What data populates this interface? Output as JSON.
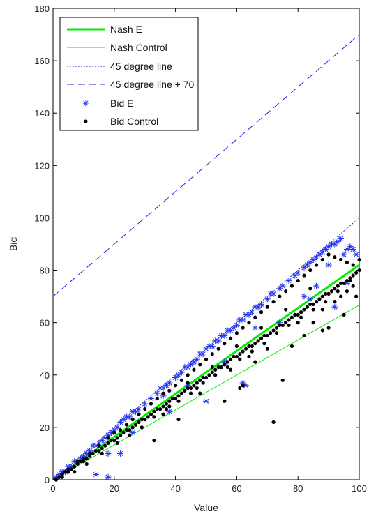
{
  "chart_data": {
    "type": "scatter",
    "title": "",
    "xlabel": "Value",
    "ylabel": "Bid",
    "xlim": [
      0,
      100
    ],
    "ylim": [
      0,
      180
    ],
    "xticks": [
      0,
      20,
      40,
      60,
      80,
      100
    ],
    "yticks": [
      0,
      20,
      40,
      60,
      80,
      100,
      120,
      140,
      160,
      180
    ],
    "grid": false,
    "legend_position": "top-left",
    "lines": [
      {
        "name": "Nash E",
        "style": "solid-thick",
        "color": "#00ee00",
        "points": [
          [
            0,
            0
          ],
          [
            100,
            82
          ]
        ]
      },
      {
        "name": "Nash Control",
        "style": "solid-thin",
        "color": "#00ee00",
        "points": [
          [
            0,
            0
          ],
          [
            100,
            66.7
          ]
        ]
      },
      {
        "name": "45 degree line",
        "style": "dotted",
        "color": "#2222dd",
        "points": [
          [
            0,
            0
          ],
          [
            100,
            100
          ]
        ]
      },
      {
        "name": "45 degree line + 70",
        "style": "dashed",
        "color": "#2222dd",
        "points": [
          [
            0,
            70
          ],
          [
            100,
            170
          ]
        ]
      }
    ],
    "series": [
      {
        "name": "Bid E",
        "marker": "star",
        "color": "#2233ee",
        "points": [
          [
            1,
            1
          ],
          [
            2,
            2
          ],
          [
            3,
            3
          ],
          [
            4,
            3
          ],
          [
            5,
            5
          ],
          [
            6,
            5
          ],
          [
            7,
            7
          ],
          [
            8,
            7
          ],
          [
            9,
            8
          ],
          [
            10,
            9
          ],
          [
            11,
            10
          ],
          [
            12,
            11
          ],
          [
            13,
            13
          ],
          [
            14,
            13
          ],
          [
            15,
            14
          ],
          [
            16,
            15
          ],
          [
            17,
            16
          ],
          [
            18,
            17
          ],
          [
            19,
            18
          ],
          [
            20,
            19
          ],
          [
            21,
            20
          ],
          [
            22,
            22
          ],
          [
            23,
            23
          ],
          [
            24,
            24
          ],
          [
            25,
            24
          ],
          [
            26,
            26
          ],
          [
            27,
            26
          ],
          [
            28,
            27
          ],
          [
            30,
            29
          ],
          [
            32,
            31
          ],
          [
            34,
            33
          ],
          [
            35,
            35
          ],
          [
            36,
            35
          ],
          [
            37,
            36
          ],
          [
            38,
            37
          ],
          [
            40,
            39
          ],
          [
            41,
            40
          ],
          [
            42,
            41
          ],
          [
            43,
            43
          ],
          [
            44,
            43
          ],
          [
            45,
            44
          ],
          [
            46,
            45
          ],
          [
            47,
            46
          ],
          [
            48,
            48
          ],
          [
            49,
            48
          ],
          [
            50,
            50
          ],
          [
            51,
            51
          ],
          [
            52,
            51
          ],
          [
            53,
            53
          ],
          [
            54,
            53
          ],
          [
            55,
            55
          ],
          [
            56,
            55
          ],
          [
            57,
            57
          ],
          [
            58,
            57
          ],
          [
            59,
            58
          ],
          [
            60,
            59
          ],
          [
            61,
            61
          ],
          [
            62,
            61
          ],
          [
            63,
            63
          ],
          [
            64,
            63
          ],
          [
            65,
            64
          ],
          [
            66,
            66
          ],
          [
            67,
            66
          ],
          [
            68,
            67
          ],
          [
            70,
            69
          ],
          [
            71,
            71
          ],
          [
            72,
            71
          ],
          [
            74,
            73
          ],
          [
            75,
            74
          ],
          [
            77,
            76
          ],
          [
            79,
            78
          ],
          [
            80,
            79
          ],
          [
            82,
            81
          ],
          [
            83,
            82
          ],
          [
            84,
            83
          ],
          [
            85,
            84
          ],
          [
            86,
            85
          ],
          [
            87,
            86
          ],
          [
            88,
            87
          ],
          [
            89,
            88
          ],
          [
            90,
            89
          ],
          [
            91,
            90
          ],
          [
            92,
            90
          ],
          [
            93,
            91
          ],
          [
            94,
            92
          ],
          [
            95,
            86
          ],
          [
            96,
            88
          ],
          [
            97,
            89
          ],
          [
            98,
            88
          ],
          [
            99,
            86
          ],
          [
            14,
            2
          ],
          [
            18,
            1
          ],
          [
            22,
            10
          ],
          [
            38,
            26
          ],
          [
            50,
            30
          ],
          [
            62,
            37
          ],
          [
            63,
            36
          ],
          [
            84,
            69
          ],
          [
            86,
            74
          ],
          [
            92,
            66
          ],
          [
            96,
            75
          ],
          [
            36,
            32
          ],
          [
            56,
            45
          ],
          [
            74,
            60
          ],
          [
            82,
            70
          ],
          [
            18,
            10
          ],
          [
            26,
            18
          ],
          [
            44,
            36
          ],
          [
            66,
            58
          ],
          [
            90,
            82
          ]
        ]
      },
      {
        "name": "Bid Control",
        "marker": "dot",
        "color": "#000000",
        "points": [
          [
            1,
            0
          ],
          [
            2,
            1
          ],
          [
            3,
            2
          ],
          [
            4,
            3
          ],
          [
            5,
            3
          ],
          [
            6,
            4
          ],
          [
            7,
            5
          ],
          [
            8,
            6
          ],
          [
            9,
            7
          ],
          [
            10,
            7
          ],
          [
            11,
            8
          ],
          [
            12,
            9
          ],
          [
            13,
            10
          ],
          [
            14,
            11
          ],
          [
            15,
            11
          ],
          [
            16,
            12
          ],
          [
            17,
            13
          ],
          [
            18,
            14
          ],
          [
            19,
            15
          ],
          [
            20,
            15
          ],
          [
            21,
            16
          ],
          [
            22,
            17
          ],
          [
            23,
            18
          ],
          [
            24,
            19
          ],
          [
            25,
            19
          ],
          [
            26,
            20
          ],
          [
            27,
            21
          ],
          [
            28,
            22
          ],
          [
            29,
            23
          ],
          [
            30,
            23
          ],
          [
            31,
            24
          ],
          [
            32,
            25
          ],
          [
            33,
            26
          ],
          [
            34,
            27
          ],
          [
            35,
            27
          ],
          [
            36,
            28
          ],
          [
            37,
            29
          ],
          [
            38,
            30
          ],
          [
            39,
            31
          ],
          [
            40,
            31
          ],
          [
            41,
            32
          ],
          [
            42,
            33
          ],
          [
            43,
            34
          ],
          [
            44,
            35
          ],
          [
            45,
            35
          ],
          [
            46,
            36
          ],
          [
            47,
            37
          ],
          [
            48,
            38
          ],
          [
            49,
            39
          ],
          [
            50,
            39
          ],
          [
            51,
            40
          ],
          [
            52,
            41
          ],
          [
            53,
            42
          ],
          [
            54,
            43
          ],
          [
            55,
            43
          ],
          [
            56,
            44
          ],
          [
            57,
            45
          ],
          [
            58,
            46
          ],
          [
            59,
            47
          ],
          [
            60,
            47
          ],
          [
            61,
            48
          ],
          [
            62,
            49
          ],
          [
            63,
            50
          ],
          [
            64,
            51
          ],
          [
            65,
            51
          ],
          [
            66,
            52
          ],
          [
            67,
            53
          ],
          [
            68,
            54
          ],
          [
            69,
            55
          ],
          [
            70,
            55
          ],
          [
            71,
            56
          ],
          [
            72,
            57
          ],
          [
            73,
            58
          ],
          [
            74,
            59
          ],
          [
            75,
            59
          ],
          [
            76,
            60
          ],
          [
            77,
            61
          ],
          [
            78,
            62
          ],
          [
            79,
            63
          ],
          [
            80,
            63
          ],
          [
            81,
            64
          ],
          [
            82,
            65
          ],
          [
            83,
            66
          ],
          [
            84,
            67
          ],
          [
            85,
            67
          ],
          [
            86,
            68
          ],
          [
            87,
            69
          ],
          [
            88,
            70
          ],
          [
            89,
            71
          ],
          [
            90,
            71
          ],
          [
            91,
            72
          ],
          [
            92,
            73
          ],
          [
            93,
            74
          ],
          [
            94,
            75
          ],
          [
            95,
            75
          ],
          [
            96,
            76
          ],
          [
            97,
            77
          ],
          [
            98,
            78
          ],
          [
            99,
            79
          ],
          [
            100,
            80
          ],
          [
            3,
            1
          ],
          [
            5,
            4
          ],
          [
            8,
            7
          ],
          [
            10,
            8
          ],
          [
            12,
            10
          ],
          [
            15,
            13
          ],
          [
            18,
            16
          ],
          [
            20,
            18
          ],
          [
            22,
            19
          ],
          [
            24,
            21
          ],
          [
            26,
            23
          ],
          [
            28,
            25
          ],
          [
            30,
            27
          ],
          [
            32,
            29
          ],
          [
            34,
            31
          ],
          [
            36,
            33
          ],
          [
            38,
            34
          ],
          [
            40,
            36
          ],
          [
            42,
            38
          ],
          [
            44,
            40
          ],
          [
            46,
            42
          ],
          [
            48,
            44
          ],
          [
            50,
            46
          ],
          [
            52,
            48
          ],
          [
            54,
            50
          ],
          [
            56,
            52
          ],
          [
            58,
            54
          ],
          [
            60,
            56
          ],
          [
            62,
            58
          ],
          [
            64,
            60
          ],
          [
            66,
            62
          ],
          [
            68,
            64
          ],
          [
            70,
            66
          ],
          [
            72,
            68
          ],
          [
            74,
            70
          ],
          [
            76,
            72
          ],
          [
            78,
            74
          ],
          [
            80,
            76
          ],
          [
            82,
            78
          ],
          [
            84,
            80
          ],
          [
            86,
            82
          ],
          [
            88,
            84
          ],
          [
            90,
            86
          ],
          [
            92,
            85
          ],
          [
            94,
            84
          ],
          [
            96,
            83
          ],
          [
            98,
            82
          ],
          [
            100,
            84
          ],
          [
            7,
            3
          ],
          [
            11,
            6
          ],
          [
            16,
            10
          ],
          [
            21,
            14
          ],
          [
            25,
            17
          ],
          [
            29,
            20
          ],
          [
            33,
            24
          ],
          [
            37,
            27
          ],
          [
            41,
            30
          ],
          [
            45,
            33
          ],
          [
            49,
            37
          ],
          [
            53,
            40
          ],
          [
            57,
            43
          ],
          [
            61,
            46
          ],
          [
            65,
            49
          ],
          [
            69,
            52
          ],
          [
            73,
            56
          ],
          [
            77,
            59
          ],
          [
            81,
            62
          ],
          [
            85,
            65
          ],
          [
            89,
            68
          ],
          [
            93,
            72
          ],
          [
            97,
            76
          ],
          [
            33,
            15
          ],
          [
            41,
            23
          ],
          [
            56,
            30
          ],
          [
            61,
            35
          ],
          [
            62,
            36
          ],
          [
            72,
            22
          ],
          [
            75,
            38
          ],
          [
            78,
            51
          ],
          [
            82,
            55
          ],
          [
            88,
            57
          ],
          [
            90,
            58
          ],
          [
            95,
            63
          ],
          [
            99,
            70
          ],
          [
            47,
            35
          ],
          [
            58,
            42
          ],
          [
            66,
            45
          ],
          [
            70,
            50
          ],
          [
            85,
            60
          ],
          [
            92,
            68
          ],
          [
            96,
            72
          ],
          [
            38,
            28
          ],
          [
            44,
            37
          ],
          [
            52,
            43
          ],
          [
            60,
            51
          ],
          [
            68,
            58
          ],
          [
            76,
            65
          ],
          [
            84,
            73
          ],
          [
            36,
            25
          ],
          [
            48,
            33
          ],
          [
            64,
            47
          ],
          [
            80,
            60
          ],
          [
            88,
            65
          ],
          [
            94,
            70
          ],
          [
            98,
            74
          ]
        ]
      }
    ]
  }
}
